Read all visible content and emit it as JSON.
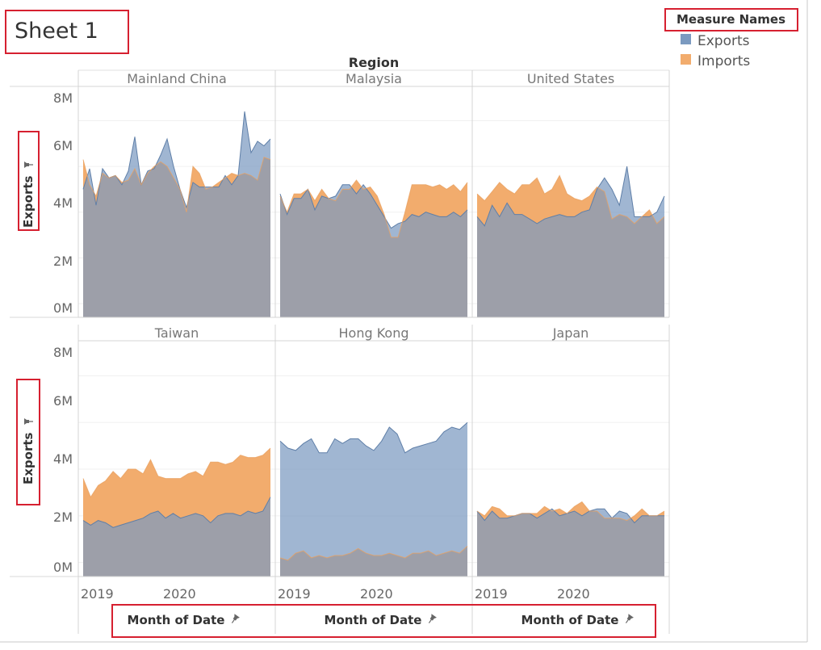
{
  "sheet_title": "Sheet 1",
  "colors": {
    "exports": "#7b9ac0",
    "imports": "#f2ac6d",
    "overlap": "#c6965f",
    "highlight": "#d62030"
  },
  "legend": {
    "title": "Measure Names",
    "items": [
      {
        "label": "Exports",
        "color": "#7b9ac0"
      },
      {
        "label": "Imports",
        "color": "#f2ac6d"
      }
    ]
  },
  "header": {
    "region_label": "Region"
  },
  "axes": {
    "y_title": "Exports",
    "y_ticks": [
      "0M",
      "2M",
      "4M",
      "6M",
      "8M"
    ],
    "x_ticks": [
      "2019",
      "2020"
    ],
    "x_title": "Month of Date"
  },
  "chart_data": {
    "type": "area",
    "x_range": [
      "2018-10",
      "2021-05"
    ],
    "ylim": [
      -0.6,
      9.5
    ],
    "y_unit": "M",
    "panels": [
      {
        "region": "Mainland China",
        "exports": [
          5.0,
          5.9,
          4.3,
          5.9,
          5.5,
          5.6,
          5.2,
          5.8,
          7.3,
          5.2,
          5.8,
          5.9,
          6.5,
          7.2,
          6.0,
          5.0,
          4.2,
          5.3,
          5.1,
          5.1,
          5.1,
          5.1,
          5.6,
          5.2,
          5.6,
          8.4,
          6.6,
          7.1,
          6.9,
          7.2
        ],
        "imports": [
          6.3,
          5.2,
          4.7,
          5.7,
          5.5,
          5.6,
          5.3,
          5.4,
          5.9,
          5.2,
          5.7,
          6.0,
          6.2,
          6.0,
          5.5,
          5.0,
          4.0,
          6.0,
          5.7,
          5.0,
          5.1,
          5.3,
          5.5,
          5.7,
          5.6,
          5.7,
          5.6,
          5.4,
          6.4,
          6.3
        ]
      },
      {
        "region": "Malaysia",
        "exports": [
          4.8,
          3.9,
          4.6,
          4.6,
          5.0,
          4.1,
          4.7,
          4.6,
          4.7,
          5.2,
          5.2,
          4.8,
          5.2,
          4.8,
          4.3,
          3.8,
          3.3,
          3.5,
          3.6,
          3.9,
          3.8,
          4.0,
          3.9,
          3.8,
          3.8,
          4.0,
          3.8,
          4.1
        ],
        "imports": [
          4.7,
          4.0,
          4.8,
          4.8,
          5.0,
          4.5,
          5.0,
          4.6,
          4.5,
          5.0,
          5.0,
          5.4,
          5.0,
          5.1,
          4.7,
          3.9,
          2.9,
          2.9,
          4.0,
          5.2,
          5.2,
          5.2,
          5.1,
          5.2,
          5.0,
          5.2,
          4.9,
          5.3
        ]
      },
      {
        "region": "United States",
        "exports": [
          3.8,
          3.4,
          4.3,
          3.8,
          4.4,
          3.9,
          3.9,
          3.7,
          3.5,
          3.7,
          3.8,
          3.9,
          3.8,
          3.8,
          4.0,
          4.1,
          5.0,
          5.5,
          5.0,
          4.3,
          6.0,
          3.8,
          3.8,
          3.8,
          4.0,
          4.7
        ],
        "imports": [
          4.8,
          4.5,
          4.9,
          5.3,
          5.0,
          4.8,
          5.2,
          5.2,
          5.5,
          4.8,
          5.0,
          5.6,
          4.8,
          4.6,
          4.5,
          4.7,
          5.1,
          4.9,
          3.7,
          3.9,
          3.8,
          3.5,
          3.8,
          4.1,
          3.5,
          3.8
        ]
      },
      {
        "region": "Taiwan",
        "exports": [
          1.8,
          1.6,
          1.8,
          1.7,
          1.5,
          1.6,
          1.7,
          1.8,
          1.9,
          2.1,
          2.2,
          1.9,
          2.1,
          1.9,
          2.0,
          2.1,
          2.0,
          1.7,
          2.0,
          2.1,
          2.1,
          2.0,
          2.2,
          2.1,
          2.2,
          2.8
        ],
        "imports": [
          3.6,
          2.8,
          3.3,
          3.5,
          3.9,
          3.6,
          4.0,
          4.0,
          3.8,
          4.4,
          3.7,
          3.6,
          3.6,
          3.6,
          3.8,
          3.9,
          3.7,
          4.3,
          4.3,
          4.2,
          4.3,
          4.6,
          4.5,
          4.5,
          4.6,
          4.9
        ]
      },
      {
        "region": "Hong Kong",
        "exports": [
          5.2,
          4.9,
          4.8,
          5.1,
          5.3,
          4.7,
          4.7,
          5.3,
          5.1,
          5.3,
          5.3,
          5.0,
          4.8,
          5.2,
          5.8,
          5.5,
          4.7,
          4.9,
          5.0,
          5.1,
          5.2,
          5.6,
          5.8,
          5.7,
          6.0
        ],
        "imports": [
          0.2,
          0.1,
          0.4,
          0.5,
          0.2,
          0.3,
          0.2,
          0.3,
          0.3,
          0.4,
          0.6,
          0.4,
          0.3,
          0.3,
          0.4,
          0.3,
          0.2,
          0.4,
          0.4,
          0.5,
          0.3,
          0.4,
          0.5,
          0.4,
          0.7
        ]
      },
      {
        "region": "Japan",
        "exports": [
          2.2,
          1.8,
          2.2,
          1.9,
          1.9,
          2.0,
          2.1,
          2.1,
          1.9,
          2.1,
          2.3,
          2.0,
          2.1,
          2.2,
          2.0,
          2.2,
          2.3,
          2.3,
          1.9,
          2.2,
          2.1,
          1.7,
          2.0,
          2.0,
          2.0,
          2.0
        ],
        "imports": [
          2.2,
          2.0,
          2.4,
          2.3,
          2.0,
          2.0,
          2.1,
          2.1,
          2.1,
          2.4,
          2.2,
          2.3,
          2.1,
          2.4,
          2.6,
          2.2,
          2.2,
          1.9,
          1.9,
          1.9,
          1.8,
          2.0,
          2.3,
          2.0,
          2.0,
          2.2
        ]
      }
    ]
  }
}
